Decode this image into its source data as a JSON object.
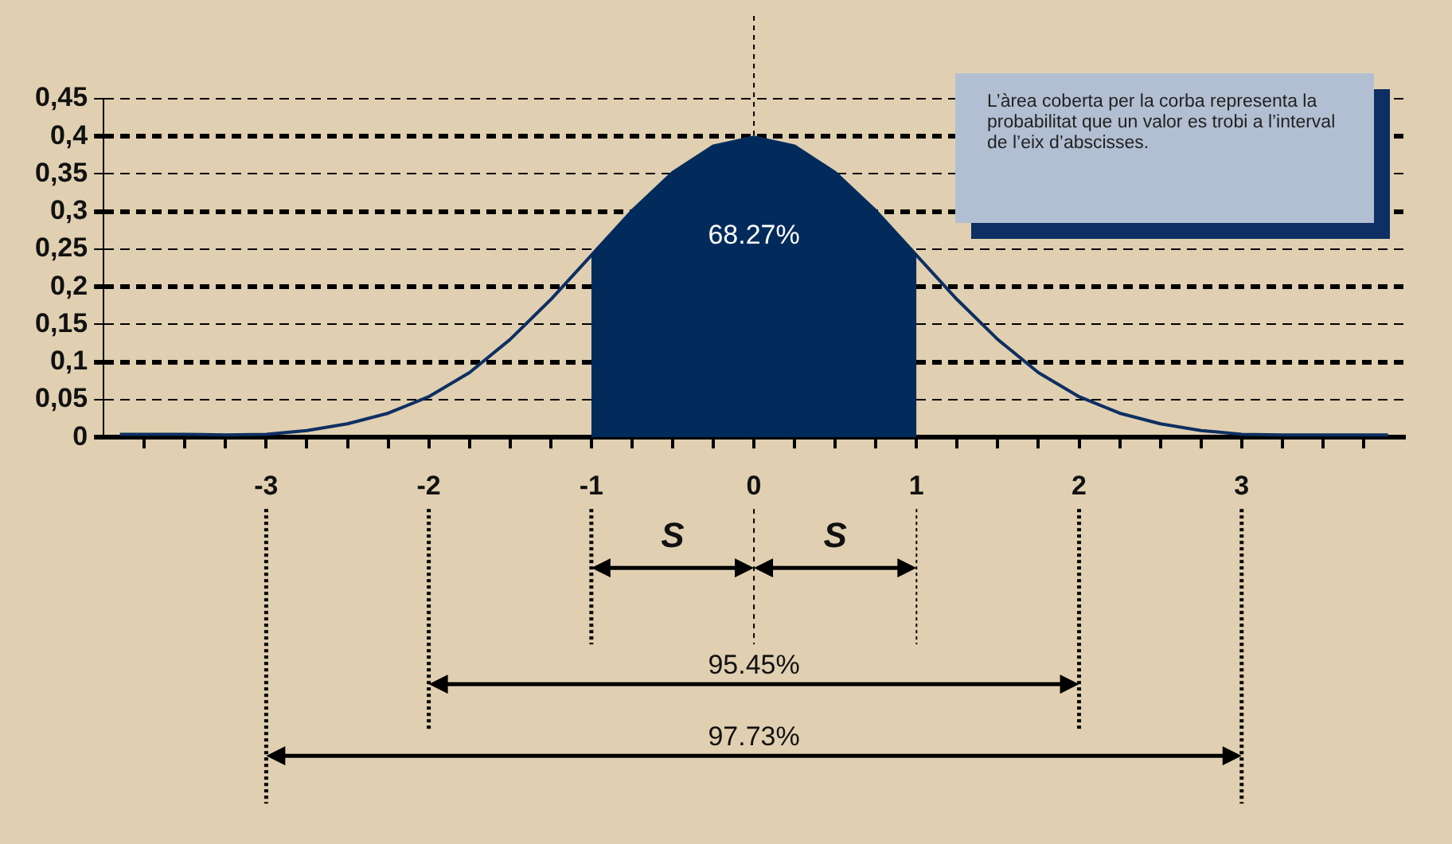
{
  "chart_data": {
    "type": "line",
    "series": [
      {
        "type": "line",
        "color": "#0d2f63",
        "x": [
          -3.9,
          -3.5,
          -3.25,
          -3,
          -2.75,
          -2.5,
          -2.25,
          -2,
          -1.75,
          -1.5,
          -1.25,
          -1,
          -0.75,
          -0.5,
          -0.25,
          0,
          0.25,
          0.5,
          0.75,
          1,
          1.25,
          1.5,
          1.75,
          2,
          2.25,
          2.5,
          2.75,
          3,
          3.25,
          3.5,
          3.9
        ],
        "values": [
          0.004,
          0.004,
          0.003,
          0.004,
          0.009,
          0.018,
          0.032,
          0.054,
          0.086,
          0.13,
          0.183,
          0.242,
          0.301,
          0.352,
          0.387,
          0.399,
          0.387,
          0.352,
          0.301,
          0.242,
          0.183,
          0.13,
          0.086,
          0.054,
          0.032,
          0.018,
          0.009,
          0.004,
          0.003,
          0.003,
          0.003
        ]
      },
      {
        "type": "area",
        "color": "#022b5c",
        "x": [
          -1,
          -0.75,
          -0.5,
          -0.25,
          0,
          0.25,
          0.5,
          0.75,
          1
        ],
        "values": [
          0.242,
          0.301,
          0.352,
          0.387,
          0.399,
          0.387,
          0.352,
          0.301,
          0.242
        ]
      }
    ],
    "xlim": [
      -4,
      4
    ],
    "xticks": [
      {
        "value": -3.75,
        "label": null
      },
      {
        "value": -3.5,
        "label": null
      },
      {
        "value": -3.25,
        "label": null
      },
      -3,
      {
        "value": -2.75,
        "label": null
      },
      {
        "value": -2.5,
        "label": null
      },
      {
        "value": -2.25,
        "label": null
      },
      -2,
      {
        "value": -1.75,
        "label": null
      },
      {
        "value": -1.5,
        "label": null
      },
      {
        "value": -1.25,
        "label": null
      },
      -1,
      {
        "value": -0.75,
        "label": null
      },
      {
        "value": -0.5,
        "label": null
      },
      {
        "value": -0.25,
        "label": null
      },
      0,
      {
        "value": 0.25,
        "label": null
      },
      {
        "value": 0.5,
        "label": null
      },
      {
        "value": 0.75,
        "label": null
      },
      1,
      {
        "value": 1.25,
        "label": null
      },
      {
        "value": 1.5,
        "label": null
      },
      {
        "value": 1.75,
        "label": null
      },
      2,
      {
        "value": 2.25,
        "label": null
      },
      {
        "value": 2.5,
        "label": null
      },
      {
        "value": 2.75,
        "label": null
      },
      3,
      {
        "value": 3.25,
        "label": null
      },
      {
        "value": 3.5,
        "label": null
      },
      {
        "value": 3.75,
        "label": null
      }
    ],
    "ylim": [
      0,
      0.45
    ],
    "yticks": [
      {
        "value": 0,
        "label": "0"
      },
      {
        "value": 0.05,
        "label": "0,05"
      },
      {
        "value": 0.1,
        "label": "0,1"
      },
      {
        "value": 0.15,
        "label": "0,15"
      },
      {
        "value": 0.2,
        "label": "0,2"
      },
      {
        "value": 0.25,
        "label": "0,25"
      },
      {
        "value": 0.3,
        "label": "0,3"
      },
      {
        "value": 0.35,
        "label": "0,35"
      },
      {
        "value": 0.4,
        "label": "0,4"
      },
      {
        "value": 0.45,
        "label": "0,45"
      }
    ],
    "grid": "y",
    "legend": false,
    "marker": "none",
    "ref_lines": [
      {
        "axis": "x",
        "value": 0,
        "line_style": "dashed",
        "color": "#000000"
      }
    ],
    "annotations": [
      "L’àrea coberta per la corba representa la probabilitat que un valor es trobi a l’interval de l’eix d’abscisses.",
      "68.27%",
      "S",
      "S",
      "95.45%",
      "97.73%"
    ]
  }
}
